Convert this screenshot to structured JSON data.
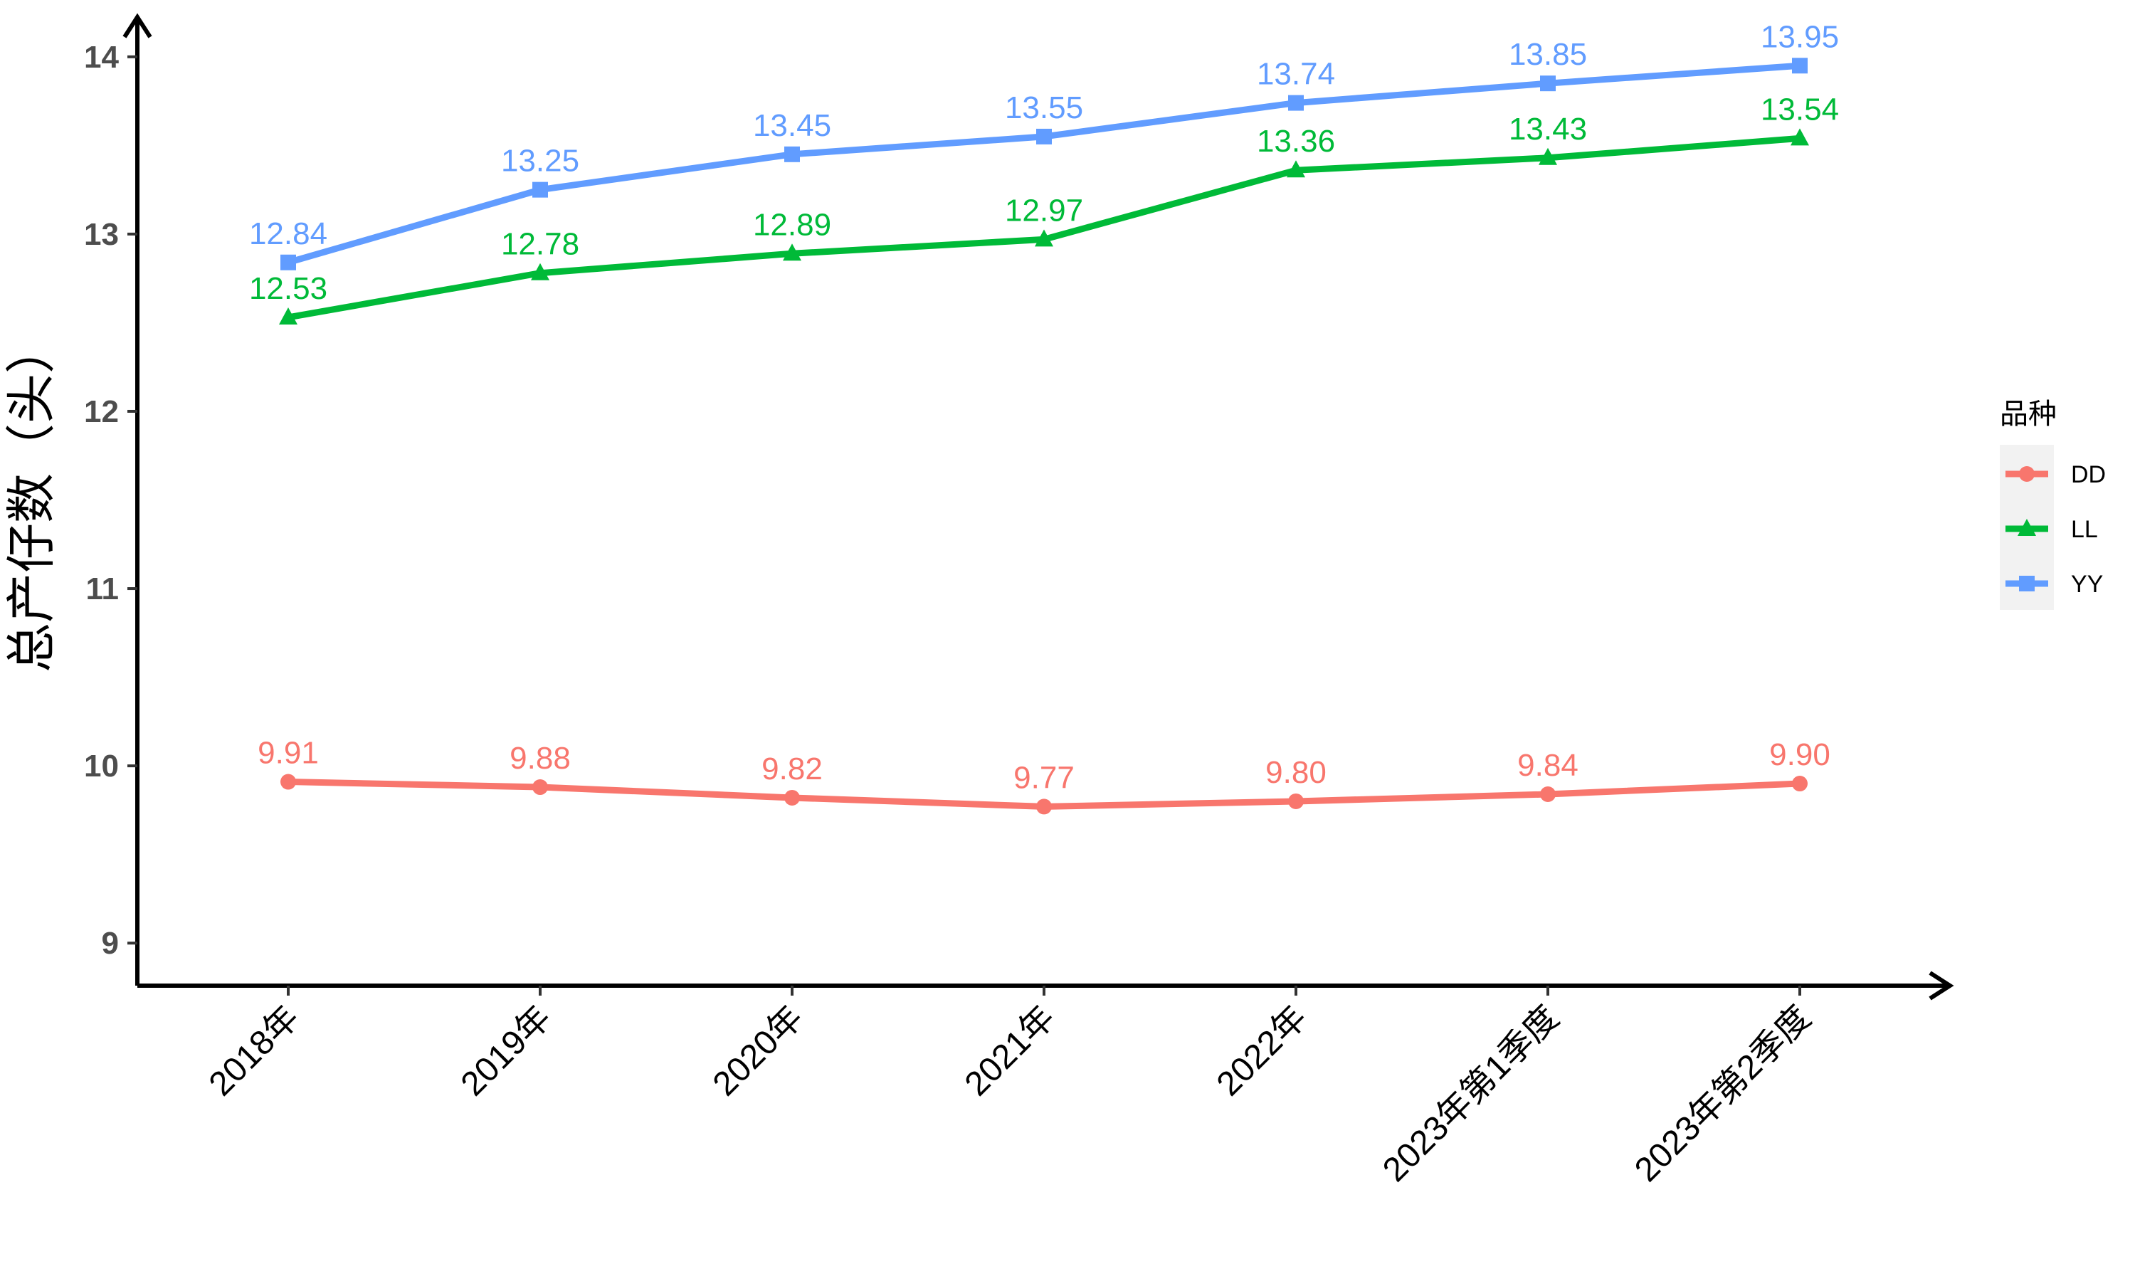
{
  "chart_data": {
    "type": "line",
    "title": "",
    "xlabel": "",
    "ylabel": "总产仔数（头）",
    "categories": [
      "2018年",
      "2019年",
      "2020年",
      "2021年",
      "2022年",
      "2023年第1季度",
      "2023年第2季度"
    ],
    "y_ticks": [
      "9",
      "10",
      "11",
      "12",
      "13",
      "14"
    ],
    "ylim": [
      8.76,
      14.2
    ],
    "grid": false,
    "legend": {
      "title": "品种",
      "position": "right"
    },
    "series": [
      {
        "name": "DD",
        "color": "#F8766D",
        "marker": "circle",
        "values": [
          9.91,
          9.88,
          9.82,
          9.77,
          9.8,
          9.84,
          9.9
        ],
        "labels": [
          "9.91",
          "9.88",
          "9.82",
          "9.77",
          "9.80",
          "9.84",
          "9.90"
        ]
      },
      {
        "name": "LL",
        "color": "#00BA38",
        "marker": "triangle",
        "values": [
          12.53,
          12.78,
          12.89,
          12.97,
          13.36,
          13.43,
          13.54
        ],
        "labels": [
          "12.53",
          "12.78",
          "12.89",
          "12.97",
          "13.36",
          "13.43",
          "13.54"
        ]
      },
      {
        "name": "YY",
        "color": "#619CFF",
        "marker": "square",
        "values": [
          12.84,
          13.25,
          13.45,
          13.55,
          13.74,
          13.85,
          13.95
        ],
        "labels": [
          "12.84",
          "13.25",
          "13.45",
          "13.55",
          "13.74",
          "13.85",
          "13.95"
        ]
      }
    ]
  }
}
